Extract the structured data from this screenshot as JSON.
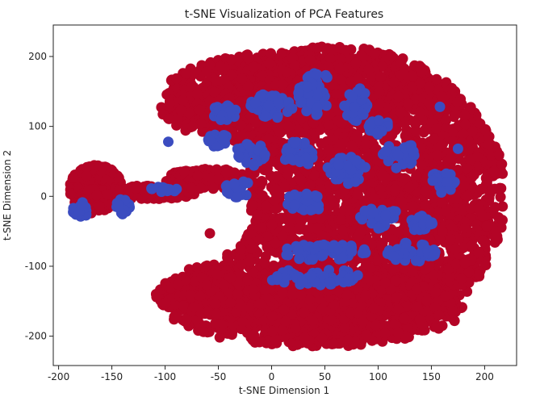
{
  "chart_data": {
    "type": "scatter",
    "title": "t-SNE Visualization of PCA Features",
    "xlabel": "t-SNE Dimension 1",
    "ylabel": "t-SNE Dimension 2",
    "xlim": [
      -205,
      230
    ],
    "ylim": [
      -242,
      245
    ],
    "xticks": [
      -200,
      -150,
      -100,
      -50,
      0,
      50,
      100,
      150,
      200
    ],
    "yticks": [
      -200,
      -100,
      0,
      100,
      200
    ],
    "grid": false,
    "colors": {
      "class_a": "#b40426",
      "class_b": "#3b4cc0"
    },
    "series": [
      {
        "color_key": "class_a",
        "regions": [
          {
            "cx": 60,
            "cy": 0,
            "rx": 160,
            "ry": 215,
            "n": 3200
          },
          {
            "cx": 10,
            "cy": 150,
            "rx": 110,
            "ry": 55,
            "n": 600
          },
          {
            "cx": 40,
            "cy": -160,
            "rx": 140,
            "ry": 55,
            "n": 700
          },
          {
            "cx": -60,
            "cy": 120,
            "rx": 45,
            "ry": 30,
            "n": 150
          },
          {
            "cx": -55,
            "cy": -140,
            "rx": 55,
            "ry": 30,
            "n": 200
          },
          {
            "cx": -165,
            "cy": 10,
            "rx": 25,
            "ry": 35,
            "n": 220
          },
          {
            "cx": -125,
            "cy": 5,
            "rx": 55,
            "ry": 10,
            "n": 200
          },
          {
            "cx": -60,
            "cy": 25,
            "rx": 40,
            "ry": 15,
            "n": 120
          }
        ],
        "points": [
          [
            -58,
            -53
          ]
        ]
      },
      {
        "color_key": "class_b",
        "regions": [
          {
            "cx": -50,
            "cy": 80,
            "rx": 10,
            "ry": 10,
            "n": 25
          },
          {
            "cx": -45,
            "cy": 120,
            "rx": 12,
            "ry": 12,
            "n": 30
          },
          {
            "cx": 0,
            "cy": 130,
            "rx": 20,
            "ry": 18,
            "n": 40
          },
          {
            "cx": 40,
            "cy": 150,
            "rx": 15,
            "ry": 35,
            "n": 45
          },
          {
            "cx": 80,
            "cy": 130,
            "rx": 12,
            "ry": 25,
            "n": 35
          },
          {
            "cx": 25,
            "cy": 60,
            "rx": 14,
            "ry": 20,
            "n": 35
          },
          {
            "cx": 70,
            "cy": 40,
            "rx": 18,
            "ry": 22,
            "n": 40
          },
          {
            "cx": 120,
            "cy": 60,
            "rx": 16,
            "ry": 20,
            "n": 35
          },
          {
            "cx": 160,
            "cy": 20,
            "rx": 12,
            "ry": 15,
            "n": 25
          },
          {
            "cx": -20,
            "cy": 60,
            "rx": 14,
            "ry": 18,
            "n": 30
          },
          {
            "cx": 30,
            "cy": -10,
            "rx": 18,
            "ry": 14,
            "n": 30
          },
          {
            "cx": 100,
            "cy": -30,
            "rx": 20,
            "ry": 16,
            "n": 35
          },
          {
            "cx": 50,
            "cy": -80,
            "rx": 40,
            "ry": 12,
            "n": 60
          },
          {
            "cx": 40,
            "cy": -115,
            "rx": 45,
            "ry": 12,
            "n": 60
          },
          {
            "cx": 130,
            "cy": -80,
            "rx": 25,
            "ry": 14,
            "n": 35
          },
          {
            "cx": -30,
            "cy": 10,
            "rx": 14,
            "ry": 12,
            "n": 25
          },
          {
            "cx": -180,
            "cy": -20,
            "rx": 8,
            "ry": 12,
            "n": 25
          },
          {
            "cx": -140,
            "cy": -15,
            "rx": 7,
            "ry": 12,
            "n": 20
          },
          {
            "cx": -100,
            "cy": 10,
            "rx": 14,
            "ry": 4,
            "n": 15
          },
          {
            "cx": 100,
            "cy": 100,
            "rx": 10,
            "ry": 12,
            "n": 20
          },
          {
            "cx": 140,
            "cy": -40,
            "rx": 12,
            "ry": 12,
            "n": 20
          }
        ],
        "points": [
          [
            -97,
            78
          ],
          [
            158,
            128
          ],
          [
            175,
            68
          ]
        ]
      }
    ]
  }
}
